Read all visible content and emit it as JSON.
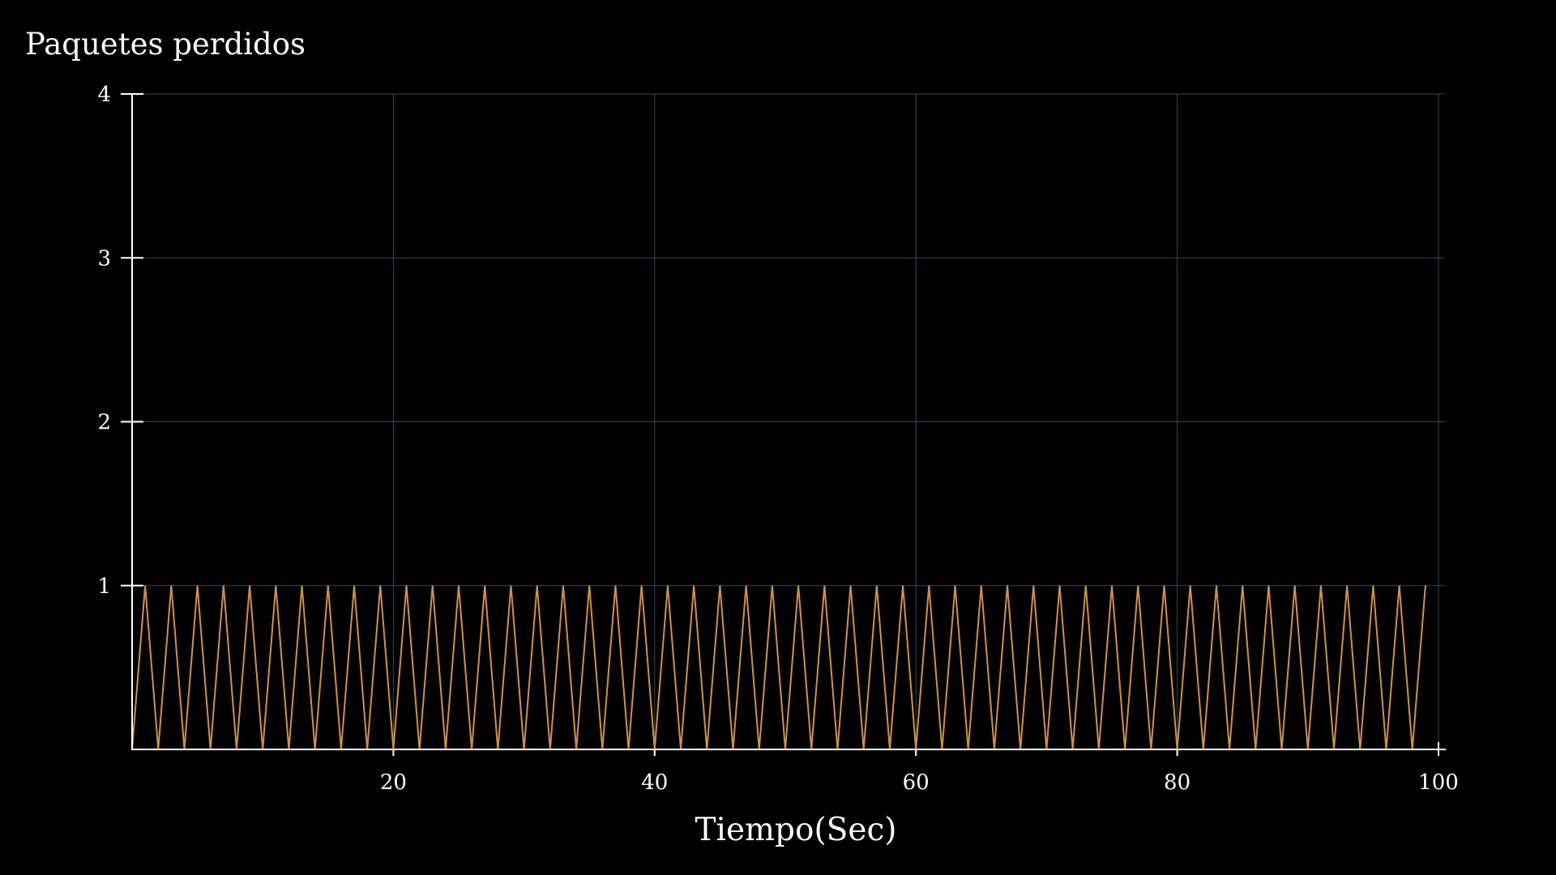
{
  "chart_data": {
    "type": "line",
    "title": "Paquetes perdidos",
    "xlabel": "Tiempo(Sec)",
    "ylabel": "",
    "xlim": [
      0,
      100
    ],
    "ylim": [
      0,
      4
    ],
    "x_ticks": [
      20,
      40,
      60,
      80,
      100
    ],
    "y_ticks": [
      1,
      2,
      3,
      4
    ],
    "grid": true,
    "series": [
      {
        "x": [
          0,
          1,
          2,
          3,
          4,
          5,
          6,
          7,
          8,
          9,
          10,
          11,
          12,
          13,
          14,
          15,
          16,
          17,
          18,
          19,
          20,
          21,
          22,
          23,
          24,
          25,
          26,
          27,
          28,
          29,
          30,
          31,
          32,
          33,
          34,
          35,
          36,
          37,
          38,
          39,
          40,
          41,
          42,
          43,
          44,
          45,
          46,
          47,
          48,
          49,
          50,
          51,
          52,
          53,
          54,
          55,
          56,
          57,
          58,
          59,
          60,
          61,
          62,
          63,
          64,
          65,
          66,
          67,
          68,
          69,
          70,
          71,
          72,
          73,
          74,
          75,
          76,
          77,
          78,
          79,
          80,
          81,
          82,
          83,
          84,
          85,
          86,
          87,
          88,
          89,
          90,
          91,
          92,
          93,
          94,
          95,
          96,
          97,
          98,
          99
        ],
        "y": [
          0,
          1,
          0,
          1,
          0,
          1,
          0,
          1,
          0,
          1,
          0,
          1,
          0,
          1,
          0,
          1,
          0,
          1,
          0,
          1,
          0,
          1,
          0,
          1,
          0,
          1,
          0,
          1,
          0,
          1,
          0,
          1,
          0,
          1,
          0,
          1,
          0,
          1,
          0,
          1,
          0,
          1,
          0,
          1,
          0,
          1,
          0,
          1,
          0,
          1,
          0,
          1,
          0,
          1,
          0,
          1,
          0,
          1,
          0,
          1,
          0,
          1,
          0,
          1,
          0,
          1,
          0,
          1,
          0,
          1,
          0,
          1,
          0,
          1,
          0,
          1,
          0,
          1,
          0,
          1,
          0,
          1,
          0,
          1,
          0,
          1,
          0,
          1,
          0,
          1,
          0,
          1,
          0,
          1,
          0,
          1,
          0,
          1,
          0,
          1
        ],
        "color": "#d4903e"
      }
    ],
    "colors": {
      "background": "#000000",
      "axis": "#ffffff",
      "grid": "#2b4a55",
      "text": "#ffffff"
    }
  }
}
